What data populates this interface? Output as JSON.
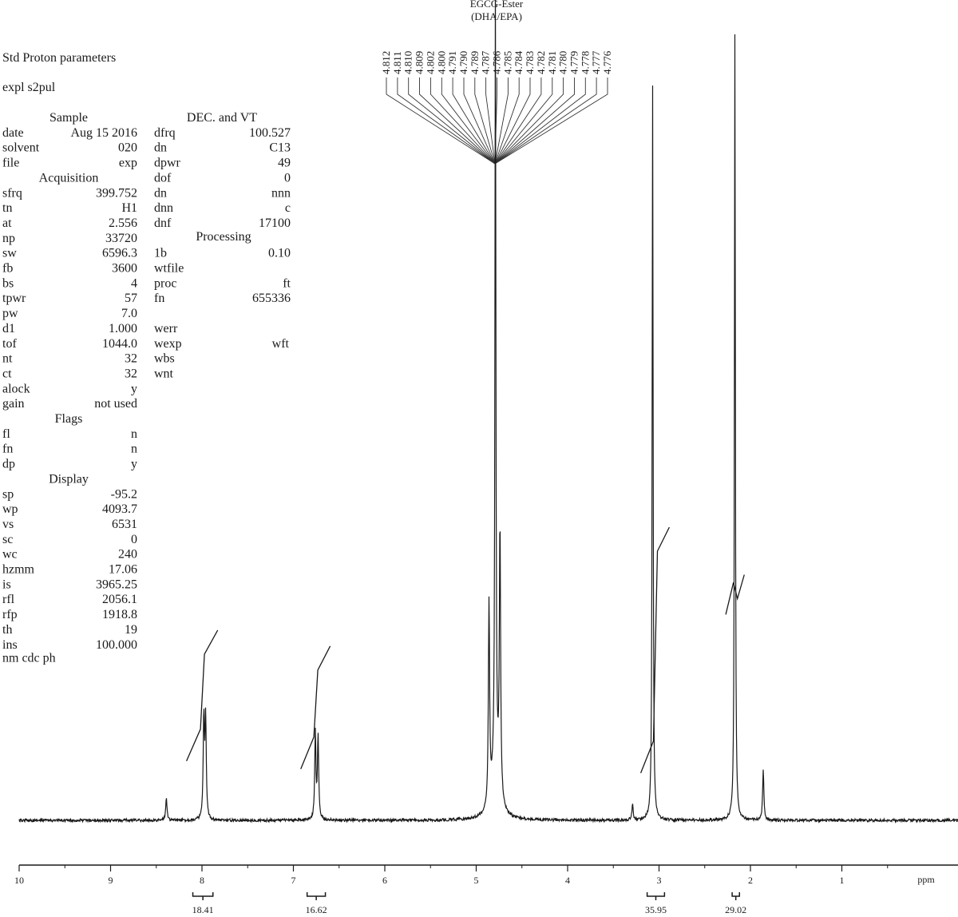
{
  "chart_data": {
    "type": "line",
    "title": "EGCG-Ester",
    "subtitle": "(DHA/EPA)",
    "xlabel": "ppm",
    "ylabel": "",
    "xlim": [
      10,
      -0.4
    ],
    "x_reversed": true,
    "grid": false,
    "legend": "none",
    "x_ticks": [
      10,
      9,
      8,
      7,
      6,
      5,
      4,
      3,
      2,
      1
    ],
    "x_tick_labels": [
      "10",
      "9",
      "8",
      "7",
      "6",
      "5",
      "4",
      "3",
      "2",
      "1"
    ],
    "y_note": "relative peak height, 0 = baseline, 1 = top of plot",
    "peaks": [
      {
        "ppm": 8.39,
        "height": 0.03
      },
      {
        "ppm": 7.98,
        "height": 0.128
      },
      {
        "ppm": 7.96,
        "height": 0.125
      },
      {
        "ppm": 6.76,
        "height": 0.108
      },
      {
        "ppm": 6.73,
        "height": 0.106
      },
      {
        "ppm": 4.86,
        "height": 0.255
      },
      {
        "ppm": 4.79,
        "height": 1.0
      },
      {
        "ppm": 4.74,
        "height": 0.34
      },
      {
        "ppm": 3.29,
        "height": 0.02
      },
      {
        "ppm": 3.07,
        "height": 0.928
      },
      {
        "ppm": 2.17,
        "height": 0.995
      },
      {
        "ppm": 1.86,
        "height": 0.063
      }
    ],
    "integrals": [
      {
        "start": 8.1,
        "end": 7.88,
        "value": "18.41",
        "from": 0.105,
        "to": 0.24
      },
      {
        "start": 6.85,
        "end": 6.65,
        "value": "16.62",
        "from": 0.095,
        "to": 0.22
      },
      {
        "start": 3.13,
        "end": 2.94,
        "value": "35.95",
        "from": 0.09,
        "to": 0.37
      },
      {
        "start": 2.2,
        "end": 2.12,
        "value": "29.02",
        "from": 0.29,
        "to": 0.31
      }
    ],
    "peak_labels": [
      "4.812",
      "4.811",
      "4.810",
      "4.809",
      "4.802",
      "4.800",
      "4.791",
      "4.790",
      "4.789",
      "4.787",
      "4.786",
      "4.785",
      "4.784",
      "4.783",
      "4.782",
      "4.781",
      "4.780",
      "4.779",
      "4.778",
      "4.777",
      "4.776"
    ],
    "params": {
      "heading_1": "Std  Proton    parameters",
      "heading_2": "expl     s2pul",
      "sections": [
        {
          "title": "Sample",
          "rows": [
            [
              "date",
              "Aug  15  2016"
            ],
            [
              "solvent",
              "020"
            ],
            [
              "file",
              "exp"
            ]
          ]
        },
        {
          "title": "Acquisition",
          "rows": [
            [
              "sfrq",
              "399.752"
            ],
            [
              "tn",
              "H1"
            ],
            [
              "at",
              "2.556"
            ],
            [
              "np",
              "33720"
            ],
            [
              "sw",
              "6596.3"
            ],
            [
              "fb",
              "3600"
            ],
            [
              "bs",
              "4"
            ],
            [
              "tpwr",
              "57"
            ],
            [
              "pw",
              "7.0"
            ],
            [
              "d1",
              "1.000"
            ],
            [
              "tof",
              "1044.0"
            ],
            [
              "nt",
              "32"
            ],
            [
              "ct",
              "32"
            ],
            [
              "alock",
              "y"
            ],
            [
              "gain",
              "not used"
            ]
          ]
        },
        {
          "title": "Flags",
          "rows": [
            [
              "fl",
              "n"
            ],
            [
              "fn",
              "n"
            ],
            [
              "dp",
              "y"
            ]
          ]
        },
        {
          "title": "Display",
          "rows": [
            [
              "sp",
              "-95.2"
            ],
            [
              "wp",
              "4093.7"
            ],
            [
              "vs",
              "6531"
            ],
            [
              "sc",
              "0"
            ],
            [
              "wc",
              "240"
            ],
            [
              "hzmm",
              "17.06"
            ],
            [
              "is",
              "3965.25"
            ],
            [
              "rfl",
              "2056.1"
            ],
            [
              "rfp",
              "1918.8"
            ],
            [
              "th",
              "19"
            ],
            [
              "ins",
              "100.000"
            ]
          ]
        }
      ],
      "nm_row": "nm   cdc     ph",
      "col2_title_1": "DEC. and VT",
      "col2_rows_1": [
        [
          "dfrq",
          "100.527"
        ],
        [
          "dn",
          "C13"
        ],
        [
          "dpwr",
          "49"
        ],
        [
          "dof",
          "0"
        ],
        [
          "dn",
          "nnn"
        ],
        [
          "dnn",
          "c"
        ],
        [
          "dnf",
          "17100"
        ]
      ],
      "col2_title_2": "Processing",
      "col2_rows_2": [
        [
          "1b",
          "0.10"
        ],
        [
          "wtfile",
          ""
        ],
        [
          "proc",
          "ft"
        ],
        [
          "fn",
          "655336"
        ]
      ],
      "col2_rows_3": [
        [
          "werr",
          ""
        ],
        [
          "wexp",
          "wft"
        ],
        [
          "wbs",
          ""
        ],
        [
          "wnt",
          ""
        ]
      ]
    }
  }
}
